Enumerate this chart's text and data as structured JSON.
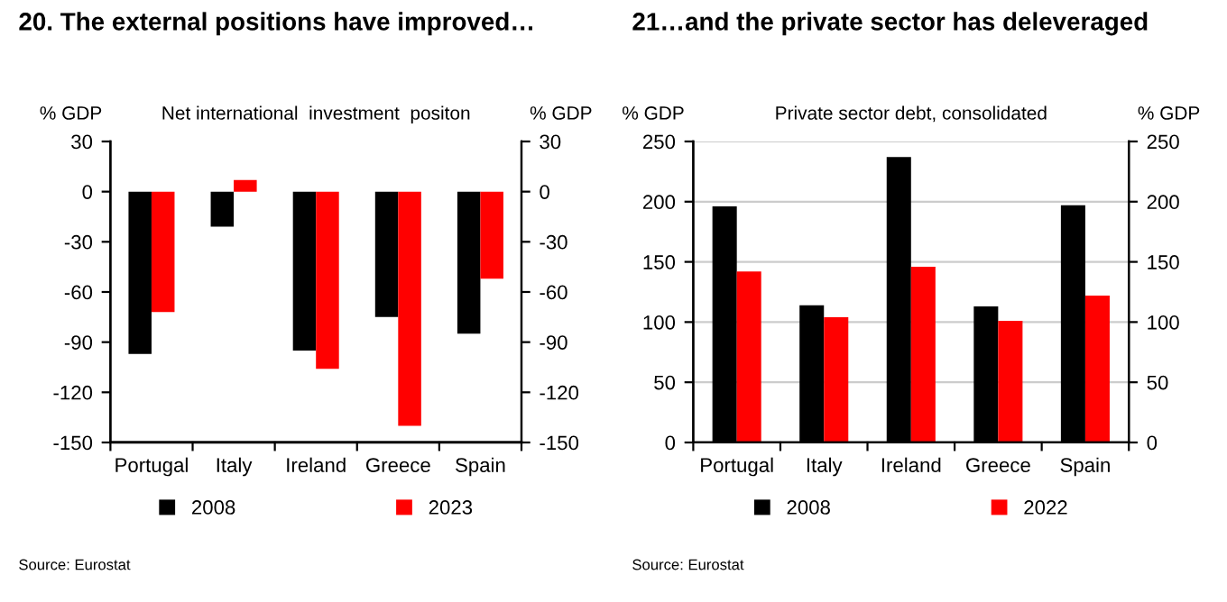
{
  "chart_data": [
    {
      "type": "bar",
      "title": "20. The external positions have improved…",
      "subtitle": "Net international  investment  positon",
      "ylabel": "% GDP",
      "y2label": "% GDP",
      "categories": [
        "Portugal",
        "Italy",
        "Ireland",
        "Greece",
        "Spain"
      ],
      "series": [
        {
          "name": "2008",
          "color": "#000000",
          "values": [
            -97,
            -21,
            -95,
            -75,
            -85
          ]
        },
        {
          "name": "2023",
          "color": "#ff0000",
          "values": [
            -72,
            7,
            -106,
            -140,
            -52
          ]
        }
      ],
      "ylim": [
        -150,
        30
      ],
      "yticks": [
        -150,
        -120,
        -90,
        -60,
        -30,
        0,
        30
      ],
      "y2lim": [
        -150,
        30
      ],
      "y2ticks": [
        -150,
        -120,
        -90,
        -60,
        -30,
        0,
        30
      ],
      "grid": false,
      "legend": "bottom",
      "annotations": [
        "Source: Eurostat"
      ]
    },
    {
      "type": "bar",
      "title": "21…and the private sector has deleveraged",
      "subtitle": "Private sector debt, consolidated",
      "ylabel": "% GDP",
      "y2label": "% GDP",
      "categories": [
        "Portugal",
        "Italy",
        "Ireland",
        "Greece",
        "Spain"
      ],
      "series": [
        {
          "name": "2008",
          "color": "#000000",
          "values": [
            196,
            114,
            237,
            113,
            197
          ]
        },
        {
          "name": "2022",
          "color": "#ff0000",
          "values": [
            142,
            104,
            146,
            101,
            122
          ]
        }
      ],
      "ylim": [
        0,
        250
      ],
      "yticks": [
        0,
        50,
        100,
        150,
        200,
        250
      ],
      "y2lim": [
        0,
        250
      ],
      "y2ticks": [
        0,
        50,
        100,
        150,
        200,
        250
      ],
      "grid": "y",
      "legend": "bottom",
      "annotations": [
        "Source: Eurostat"
      ]
    }
  ]
}
